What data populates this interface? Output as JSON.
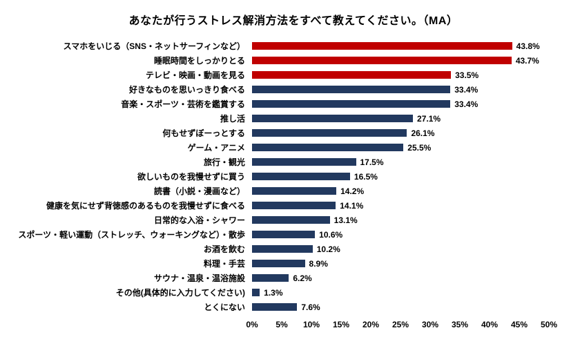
{
  "title": "あなたが行うストレス解消方法をすべて教えてください。（MA）",
  "colors": {
    "highlight_bar": "#c00000",
    "default_bar": "#22395f",
    "text": "#000000",
    "background": "#ffffff"
  },
  "chart_data": {
    "type": "bar",
    "orientation": "horizontal",
    "title": "あなたが行うストレス解消方法をすべて教えてください。（MA）",
    "xlabel": "",
    "ylabel": "",
    "xlim": [
      0,
      50
    ],
    "x_tick_labels": [
      "0%",
      "5%",
      "10%",
      "15%",
      "20%",
      "25%",
      "30%",
      "35%",
      "40%",
      "45%",
      "50%"
    ],
    "grid": false,
    "legend": false,
    "highlight_count": 3,
    "categories": [
      "スマホをいじる（SNS・ネットサーフィンなど）",
      "睡眠時間をしっかりとる",
      "テレビ・映画・動画を見る",
      "好きなものを思いっきり食べる",
      "音楽・スポーツ・芸術を鑑賞する",
      "推し活",
      "何もせずぼーっとする",
      "ゲーム・アニメ",
      "旅行・観光",
      "欲しいものを我慢せずに買う",
      "読書（小説・漫画など）",
      "健康を気にせず背徳感のあるものを我慢せずに食べる",
      "日常的な入浴・シャワー",
      "スポーツ・軽い運動（ストレッチ、ウォーキングなど）・散歩",
      "お酒を飲む",
      "料理・手芸",
      "サウナ・温泉・温浴施設",
      "その他(具体的に入力してください)",
      "とくにない"
    ],
    "values": [
      43.8,
      43.7,
      33.5,
      33.4,
      33.4,
      27.1,
      26.1,
      25.5,
      17.5,
      16.5,
      14.2,
      14.1,
      13.1,
      10.6,
      10.2,
      8.9,
      6.2,
      1.3,
      7.6
    ],
    "value_labels": [
      "43.8%",
      "43.7%",
      "33.5%",
      "33.4%",
      "33.4%",
      "27.1%",
      "26.1%",
      "25.5%",
      "17.5%",
      "16.5%",
      "14.2%",
      "14.1%",
      "13.1%",
      "10.6%",
      "10.2%",
      "8.9%",
      "6.2%",
      "1.3%",
      "7.6%"
    ]
  }
}
